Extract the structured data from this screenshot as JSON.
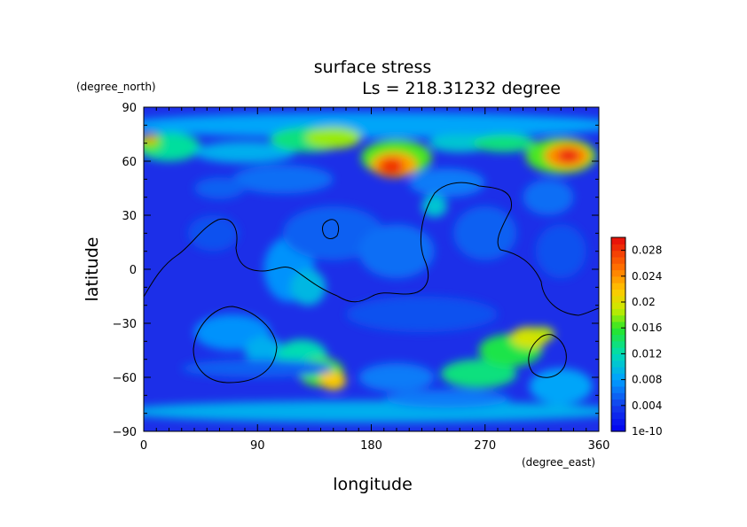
{
  "chart_data": {
    "type": "heatmap",
    "title": "surface stress",
    "subtitle": "Ls = 218.31232 degree",
    "xlabel": "longitude",
    "ylabel": "latitude",
    "x_unit": "(degree_east)",
    "y_unit": "(degree_north)",
    "xlim": [
      0,
      360
    ],
    "ylim": [
      -90,
      90
    ],
    "x_ticks": [
      "0",
      "90",
      "180",
      "270",
      "360"
    ],
    "y_ticks": [
      "90",
      "60",
      "30",
      "0",
      "−30",
      "−60",
      "−90"
    ],
    "colorbar": {
      "range": [
        0,
        0.03
      ],
      "tick_values": [
        0,
        0.004,
        0.008,
        0.012,
        0.016,
        0.02,
        0.024,
        0.028
      ],
      "tick_labels": [
        "1e-10",
        "0.004",
        "0.008",
        "0.012",
        "0.016",
        "0.02",
        "0.024",
        "0.028"
      ]
    },
    "grid": false,
    "hotspots": [
      {
        "lon": 195,
        "lat": 57,
        "value": 0.028
      },
      {
        "lon": 335,
        "lat": 63,
        "value": 0.029
      },
      {
        "lon": 5,
        "lat": 72,
        "value": 0.024
      },
      {
        "lon": 145,
        "lat": -60,
        "value": 0.022
      },
      {
        "lon": 310,
        "lat": -38,
        "value": 0.02
      }
    ]
  }
}
